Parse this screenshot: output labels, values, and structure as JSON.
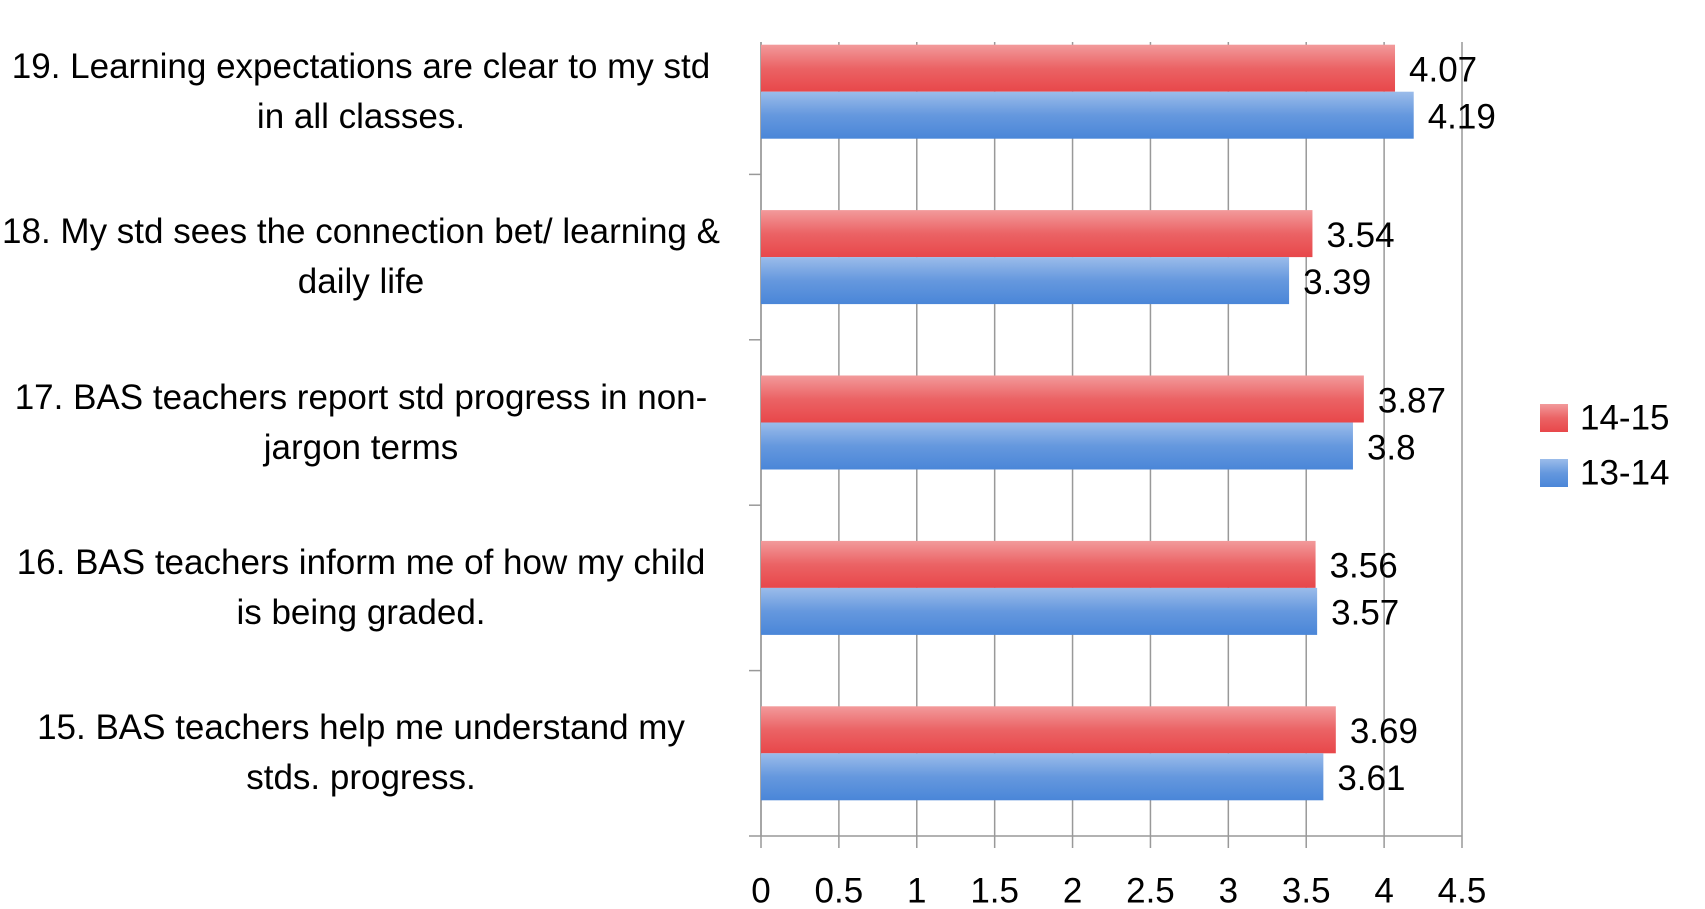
{
  "chart_data": {
    "type": "bar",
    "orientation": "horizontal",
    "categories": [
      "15. BAS teachers help me understand my stds. progress.",
      "16. BAS teachers inform me of how my child is being graded.",
      "17. BAS teachers report std progress in non-jargon terms",
      "18. My std sees the connection bet/ learning & daily life",
      "19. Learning expectations are clear to my std in all classes."
    ],
    "series": [
      {
        "name": "14-15",
        "color": "#e8474a",
        "values": [
          3.69,
          3.56,
          3.87,
          3.54,
          4.07
        ]
      },
      {
        "name": "13-14",
        "color": "#4a86d8",
        "values": [
          3.61,
          3.57,
          3.8,
          3.39,
          4.19
        ]
      }
    ],
    "xlim": [
      0,
      4.5
    ],
    "xticks": [
      0,
      0.5,
      1,
      1.5,
      2,
      2.5,
      3,
      3.5,
      4,
      4.5
    ],
    "grid": true,
    "legend": "right"
  }
}
